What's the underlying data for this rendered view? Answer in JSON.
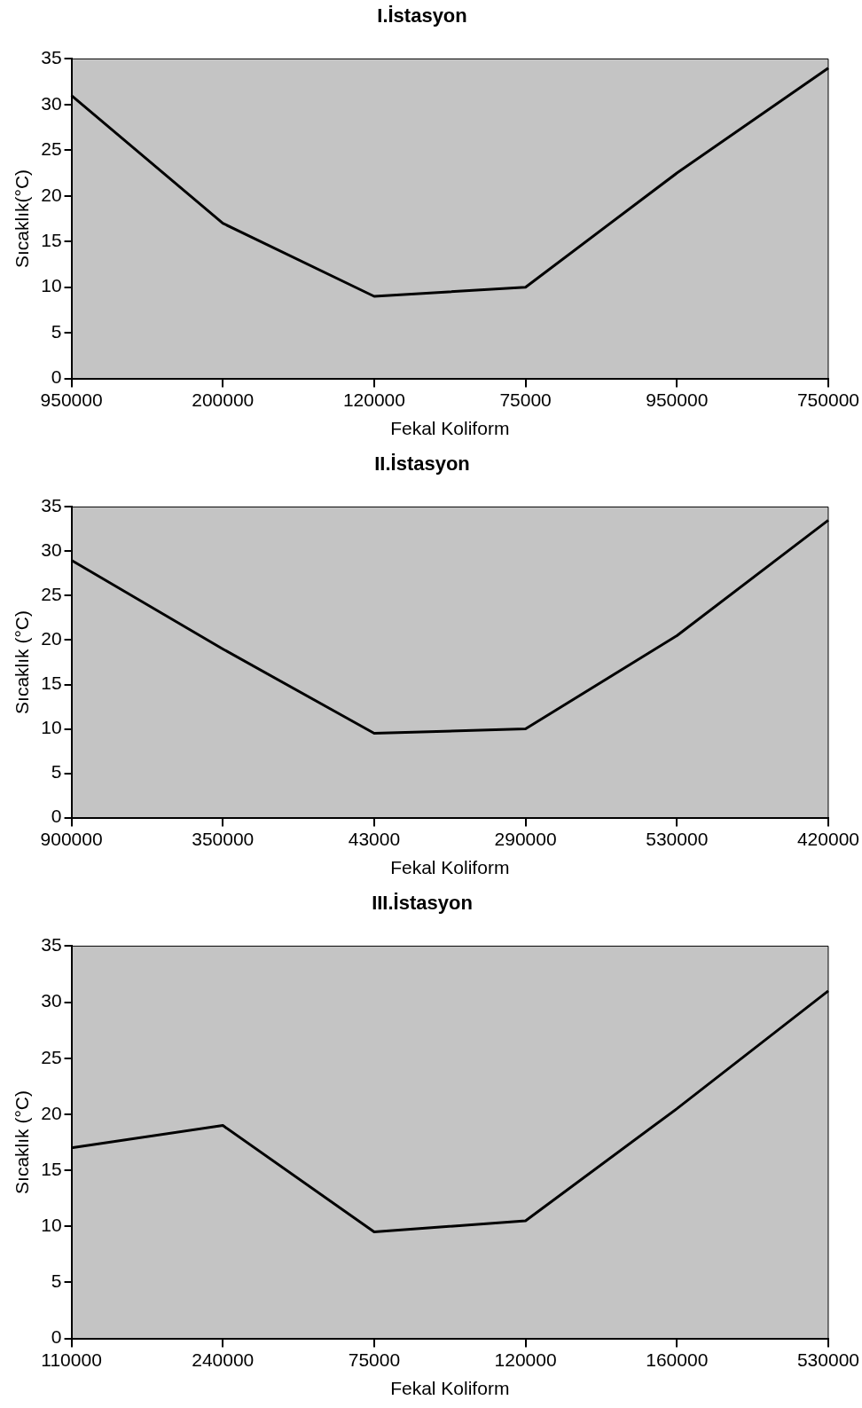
{
  "chart_data": [
    {
      "type": "line",
      "title": "I.İstasyon",
      "xlabel": "Fekal Koliform",
      "ylabel": "Sıcaklık(°C)",
      "categories": [
        "950000",
        "200000",
        "120000",
        "75000",
        "950000",
        "750000"
      ],
      "series": [
        {
          "color": "#000000",
          "values": [
            31,
            17,
            9,
            10,
            22.5,
            34
          ]
        }
      ],
      "ylim": [
        0,
        35
      ],
      "yticks": [
        0,
        5,
        10,
        15,
        20,
        25,
        30,
        35
      ],
      "marker": "none"
    },
    {
      "type": "line",
      "title": "II.İstasyon",
      "xlabel": "Fekal Koliform",
      "ylabel": "Sıcaklık (°C)",
      "categories": [
        "900000",
        "350000",
        "43000",
        "290000",
        "530000",
        "420000"
      ],
      "series": [
        {
          "color": "#000000",
          "values": [
            29,
            19,
            9.5,
            10,
            20.5,
            33.5
          ]
        }
      ],
      "ylim": [
        0,
        35
      ],
      "yticks": [
        0,
        5,
        10,
        15,
        20,
        25,
        30,
        35
      ],
      "marker": "none"
    },
    {
      "type": "line",
      "title": "III.İstasyon",
      "xlabel": "Fekal Koliform",
      "ylabel": "Sıcaklık (°C)",
      "categories": [
        "110000",
        "240000",
        "75000",
        "120000",
        "160000",
        "530000"
      ],
      "series": [
        {
          "color": "#000000",
          "values": [
            17,
            19,
            9.5,
            10.5,
            20.5,
            31
          ]
        }
      ],
      "ylim": [
        0,
        35
      ],
      "yticks": [
        0,
        5,
        10,
        15,
        20,
        25,
        30,
        35
      ],
      "marker": "none"
    }
  ]
}
